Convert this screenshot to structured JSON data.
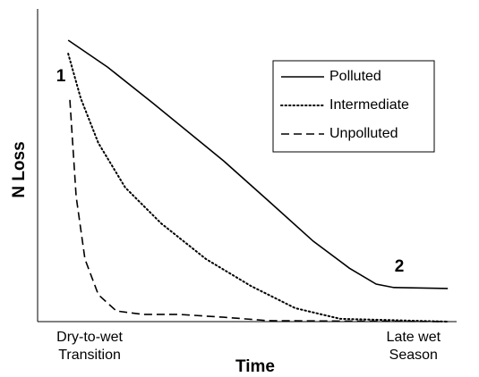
{
  "chart_data": {
    "type": "line",
    "xlabel": "Time",
    "ylabel": "N Loss",
    "xlim": [
      0,
      100
    ],
    "ylim": [
      0,
      100
    ],
    "xticks": [
      {
        "value": 12.4,
        "label": "Dry-to-wet\nTransition"
      },
      {
        "value": 89.7,
        "label": "Late wet\nSeason"
      }
    ],
    "annotations": [
      "1",
      "2"
    ],
    "legend": "upper right",
    "series": [
      {
        "name": "Polluted",
        "color": "#000000",
        "dash": "solid",
        "x": [
          7.3,
          16.7,
          27.4,
          44.4,
          55.1,
          65.8,
          74.4,
          80.8,
          85,
          97.9
        ],
        "values": [
          90,
          81.4,
          70,
          51.4,
          38.6,
          25.7,
          17.1,
          12,
          10.9,
          10.6
        ]
      },
      {
        "name": "Intermediate",
        "color": "#000000",
        "dash": "dotted",
        "x": [
          7.3,
          10.3,
          14.5,
          20.9,
          29.5,
          40.2,
          50.9,
          61.5,
          72.2,
          97.9
        ],
        "values": [
          85.7,
          71.4,
          57.1,
          42.9,
          31.4,
          20,
          11.4,
          4.3,
          0.9,
          0
        ]
      },
      {
        "name": "Unpolluted",
        "color": "#000000",
        "dash": "dashed",
        "x": [
          7.7,
          9.2,
          11.3,
          14.5,
          18.8,
          25.2,
          33.8,
          44.4,
          55.1,
          97.9
        ],
        "values": [
          70.9,
          40,
          20,
          8.6,
          3.4,
          2.3,
          2.3,
          1.4,
          0.3,
          0
        ]
      }
    ]
  }
}
